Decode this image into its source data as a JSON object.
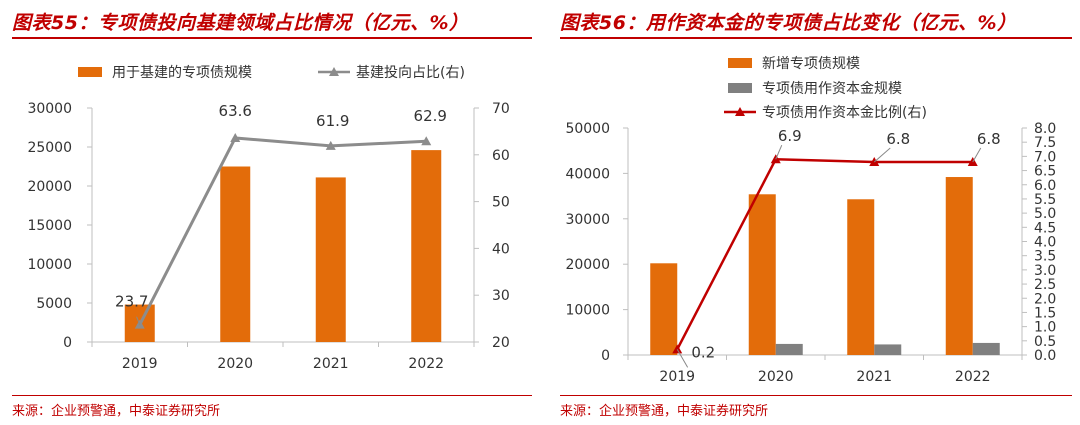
{
  "panels": [
    {
      "title": "图表55：专项债投向基建领域占比情况（亿元、%）",
      "source": "来源：企业预警通，中泰证券研究所"
    },
    {
      "title": "图表56：用作资本金的专项债占比变化（亿元、%）",
      "source": "来源：企业预警通，中泰证券研究所"
    }
  ],
  "colors": {
    "accent": "#c00000",
    "orange": "#e36c0a",
    "gray_bar": "#808080",
    "gray_line": "#8c8c8c",
    "red_line": "#c00000",
    "axis": "#bfbfbf"
  },
  "chart_data": [
    {
      "type": "bar",
      "categories": [
        "2019",
        "2020",
        "2021",
        "2022"
      ],
      "series": [
        {
          "name": "用于基建的专项债规模",
          "type": "bar",
          "axis": "left",
          "values": [
            4800,
            22500,
            21100,
            24600
          ]
        },
        {
          "name": "基建投向占比(右)",
          "type": "line",
          "axis": "right",
          "marker": "triangle",
          "values": [
            23.7,
            63.6,
            61.9,
            62.9
          ]
        }
      ],
      "left_axis": {
        "ylim": [
          0,
          30000
        ],
        "ticks": [
          0,
          5000,
          10000,
          15000,
          20000,
          25000,
          30000
        ]
      },
      "right_axis": {
        "ylim": [
          20,
          70
        ],
        "ticks": [
          20,
          30,
          40,
          50,
          60,
          70
        ]
      },
      "data_labels": [
        "23.7",
        "63.6",
        "61.9",
        "62.9"
      ],
      "legend_placement": "top",
      "grid": false
    },
    {
      "type": "bar",
      "categories": [
        "2019",
        "2020",
        "2021",
        "2022"
      ],
      "series": [
        {
          "name": "新增专项债规模",
          "type": "bar",
          "axis": "left",
          "values": [
            20200,
            35400,
            34300,
            39200
          ]
        },
        {
          "name": "专项债用作资本金规模",
          "type": "bar",
          "axis": "left",
          "values": [
            40,
            2440,
            2330,
            2660
          ]
        },
        {
          "name": "专项债用作资本金比例(右)",
          "type": "line",
          "axis": "right",
          "marker": "triangle",
          "values": [
            0.2,
            6.9,
            6.8,
            6.8
          ]
        }
      ],
      "left_axis": {
        "ylim": [
          0,
          50000
        ],
        "ticks": [
          0,
          10000,
          20000,
          30000,
          40000,
          50000
        ]
      },
      "right_axis": {
        "ylim": [
          0,
          8
        ],
        "ticks": [
          "0.0",
          "0.5",
          "1.0",
          "1.5",
          "2.0",
          "2.5",
          "3.0",
          "3.5",
          "4.0",
          "4.5",
          "5.0",
          "5.5",
          "6.0",
          "6.5",
          "7.0",
          "7.5",
          "8.0"
        ]
      },
      "data_labels": [
        "0.2",
        "6.9",
        "6.8",
        "6.8"
      ],
      "legend_placement": "top",
      "grid": false
    }
  ]
}
